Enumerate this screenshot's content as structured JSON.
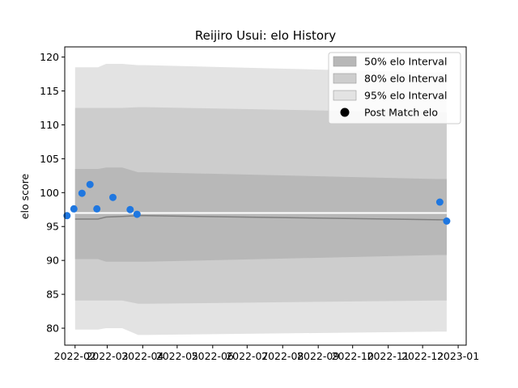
{
  "chart_data": {
    "type": "line",
    "title": "Reijiro Usui: elo History",
    "xlabel": "",
    "ylabel": "elo score",
    "x_ticks": [
      "2022-02",
      "2022-03",
      "2022-04",
      "2022-05",
      "2022-06",
      "2022-07",
      "2022-08",
      "2022-09",
      "2022-10",
      "2022-11",
      "2022-12",
      "2023-01"
    ],
    "x_range": [
      "2022-01-23",
      "2023-01-08"
    ],
    "y_ticks": [
      80,
      85,
      90,
      95,
      100,
      105,
      110,
      115,
      120
    ],
    "ylim": [
      77.5,
      121.5
    ],
    "grid": false,
    "legend_position": "top-right",
    "x": [
      "2022-02-01",
      "2022-02-07",
      "2022-02-14",
      "2022-02-21",
      "2022-02-28",
      "2022-03-14",
      "2022-03-28",
      "2022-04-04",
      "2022-12-15",
      "2022-12-22"
    ],
    "series": [
      {
        "name": "95% elo Interval",
        "role": "band",
        "color": "#e3e3e3",
        "lower": [
          79.8,
          79.8,
          79.8,
          79.8,
          80.0,
          80.0,
          79.0,
          79.0,
          79.5,
          79.5
        ],
        "upper": [
          118.5,
          118.5,
          118.5,
          118.5,
          119.0,
          119.0,
          118.8,
          118.8,
          117.7,
          117.7
        ]
      },
      {
        "name": "80% elo Interval",
        "role": "band",
        "color": "#cdcdcd",
        "lower": [
          84.1,
          84.1,
          84.1,
          84.1,
          84.1,
          84.1,
          83.6,
          83.6,
          84.1,
          84.1
        ],
        "upper": [
          112.5,
          112.5,
          112.5,
          112.5,
          112.5,
          112.5,
          112.6,
          112.6,
          111.8,
          111.8
        ]
      },
      {
        "name": "50% elo Interval",
        "role": "band",
        "color": "#b8b8b8",
        "lower": [
          90.2,
          90.2,
          90.2,
          90.2,
          89.8,
          89.8,
          89.8,
          89.8,
          90.8,
          90.8
        ],
        "upper": [
          103.5,
          103.5,
          103.5,
          103.5,
          103.7,
          103.7,
          103.0,
          103.0,
          102.0,
          102.0
        ]
      },
      {
        "name": "",
        "role": "mean-line",
        "color": "#7f7f7f",
        "values": [
          96.1,
          96.1,
          96.1,
          96.1,
          96.4,
          96.5,
          96.6,
          96.6,
          96.0,
          96.0
        ]
      },
      {
        "name": "",
        "role": "reference-line",
        "color": "#ffffff",
        "values": [
          97.0,
          97.0,
          97.0,
          97.0,
          97.0,
          97.0,
          97.0,
          97.0,
          97.0,
          97.0
        ]
      },
      {
        "name": "Post Match elo",
        "role": "points",
        "color": "#1f77e0",
        "points": [
          {
            "x": "2022-01-25",
            "y": 96.6
          },
          {
            "x": "2022-01-31",
            "y": 97.6
          },
          {
            "x": "2022-02-07",
            "y": 99.9
          },
          {
            "x": "2022-02-14",
            "y": 101.2
          },
          {
            "x": "2022-02-20",
            "y": 97.6
          },
          {
            "x": "2022-03-06",
            "y": 99.3
          },
          {
            "x": "2022-03-21",
            "y": 97.5
          },
          {
            "x": "2022-03-27",
            "y": 96.8
          },
          {
            "x": "2022-12-16",
            "y": 98.6
          },
          {
            "x": "2022-12-22",
            "y": 95.8
          }
        ]
      }
    ],
    "legend": [
      {
        "label": "50% elo Interval",
        "kind": "patch",
        "color": "#b8b8b8"
      },
      {
        "label": "80% elo Interval",
        "kind": "patch",
        "color": "#cdcdcd"
      },
      {
        "label": "95% elo Interval",
        "kind": "patch",
        "color": "#e3e3e3"
      },
      {
        "label": "Post Match elo",
        "kind": "marker",
        "color": "#000000"
      }
    ]
  }
}
